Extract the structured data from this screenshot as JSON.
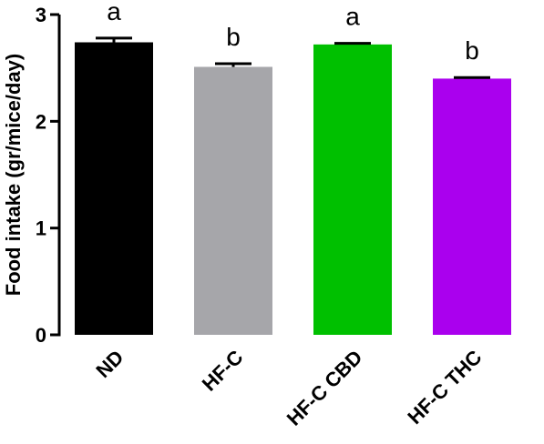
{
  "chart_data": {
    "type": "bar",
    "title": "",
    "xlabel": "",
    "ylabel": "Food intake (gr/mice/day)",
    "ylim": [
      0,
      3
    ],
    "yticks": [
      0,
      1,
      2,
      3
    ],
    "grid": false,
    "categories": [
      "ND",
      "HF-C",
      "HF-C CBD",
      "HF-C THC"
    ],
    "values": [
      2.74,
      2.51,
      2.72,
      2.4
    ],
    "errors": [
      0.04,
      0.03,
      0.01,
      0.01
    ],
    "significance_letters": [
      "a",
      "b",
      "a",
      "b"
    ],
    "colors": [
      "#000000",
      "#A6A6AA",
      "#00C000",
      "#AA00EE"
    ]
  }
}
